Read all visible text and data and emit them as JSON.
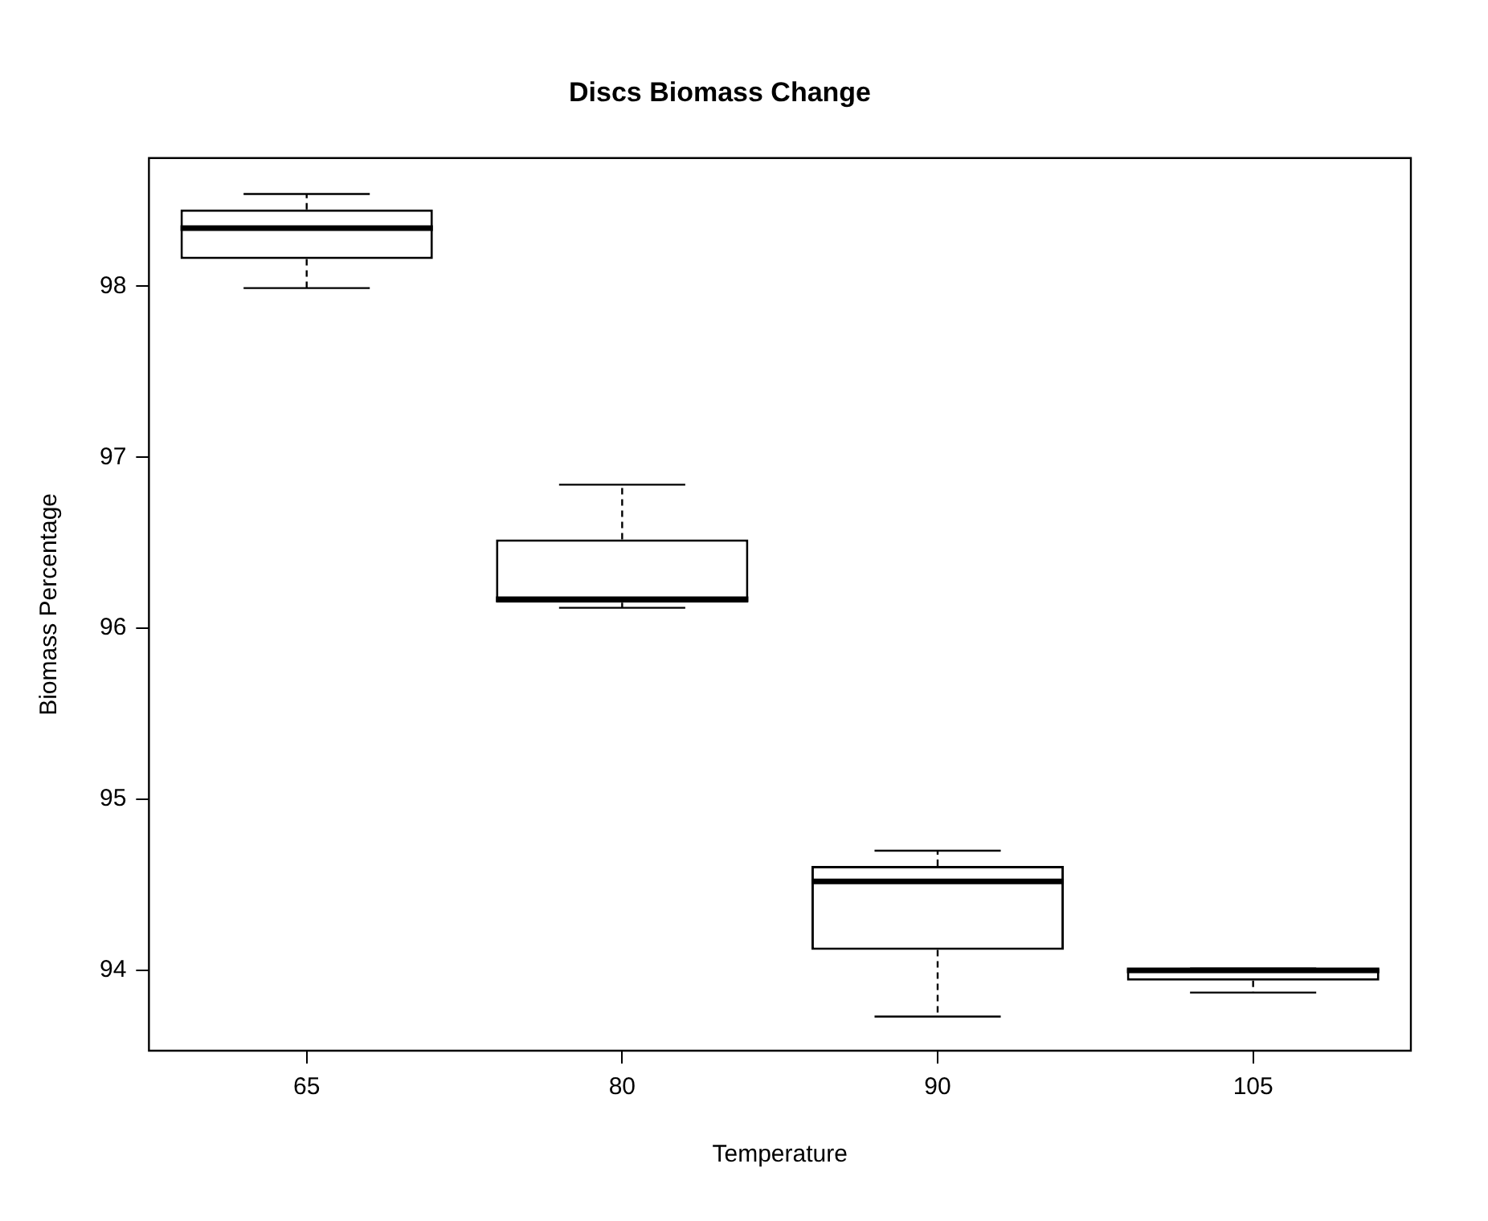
{
  "chart_data": {
    "type": "box",
    "title": "Discs Biomass Change",
    "xlabel": "Temperature",
    "ylabel": "Biomass Percentage",
    "categories": [
      "65",
      "80",
      "90",
      "105"
    ],
    "boxes": [
      {
        "low": 97.99,
        "q1": 98.16,
        "median": 98.34,
        "q3": 98.45,
        "high": 98.54
      },
      {
        "low": 96.12,
        "q1": 96.15,
        "median": 96.17,
        "q3": 96.52,
        "high": 96.84
      },
      {
        "low": 93.73,
        "q1": 94.12,
        "median": 94.52,
        "q3": 94.61,
        "high": 94.7
      },
      {
        "low": 93.87,
        "q1": 93.94,
        "median": 94.0,
        "q3": 94.01,
        "high": 94.01
      }
    ],
    "ylim": [
      93.53,
      98.75
    ],
    "yticks": [
      94,
      95,
      96,
      97,
      98
    ],
    "grid": false,
    "legend": false
  }
}
